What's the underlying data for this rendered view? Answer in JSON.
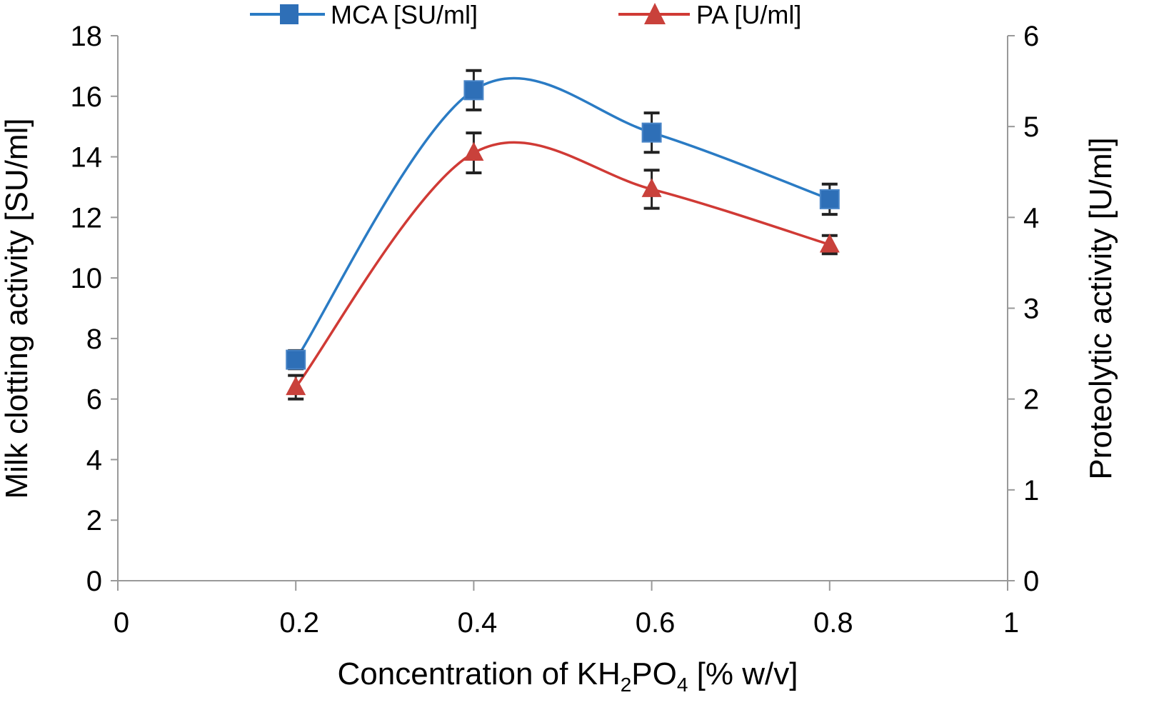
{
  "chart_data": {
    "type": "line",
    "title": "",
    "xlabel": "Concentration of KH2PO4 [% w/v]",
    "xlabel_parts": [
      {
        "text": "Concentration of KH",
        "sub": false
      },
      {
        "text": "2",
        "sub": true
      },
      {
        "text": "PO",
        "sub": false
      },
      {
        "text": "4",
        "sub": true
      },
      {
        "text": " [% w/v]",
        "sub": false
      }
    ],
    "ylabel": "Milk clotting activity [SU/ml]",
    "y2label": "Proteolytic activity [U/ml]",
    "xlim": [
      0,
      1
    ],
    "ylim": [
      0,
      18
    ],
    "y2lim": [
      0,
      6
    ],
    "xticks": [
      "0",
      "0.2",
      "0.4",
      "0.6",
      "0.8",
      "1"
    ],
    "xtick_values": [
      0,
      0.2,
      0.4,
      0.6,
      0.8,
      1
    ],
    "yticks": [
      "0",
      "2",
      "4",
      "6",
      "8",
      "10",
      "12",
      "14",
      "16",
      "18"
    ],
    "ytick_values": [
      0,
      2,
      4,
      6,
      8,
      10,
      12,
      14,
      16,
      18
    ],
    "y2ticks": [
      "0",
      "1",
      "2",
      "3",
      "4",
      "5",
      "6"
    ],
    "y2tick_values": [
      0,
      1,
      2,
      3,
      4,
      5,
      6
    ],
    "grid": false,
    "legend_position": "top",
    "x": [
      0.2,
      0.4,
      0.6,
      0.8
    ],
    "series": [
      {
        "name": "MCA [SU/ml]",
        "axis": "left",
        "marker": "square",
        "color": "#2e6fb7",
        "line_color": "#2a7bc4",
        "smooth": true,
        "values": [
          7.3,
          16.2,
          14.8,
          12.6
        ],
        "errors": [
          0.3,
          0.65,
          0.65,
          0.5
        ]
      },
      {
        "name": "PA [U/ml]",
        "axis": "right",
        "marker": "triangle",
        "color": "#c9413b",
        "line_color": "#d03a35",
        "smooth": true,
        "values": [
          2.13,
          4.71,
          4.31,
          3.7
        ],
        "errors": [
          0.13,
          0.22,
          0.21,
          0.1
        ]
      }
    ],
    "axis_color": "#999999",
    "errorbar_color": "#222222"
  }
}
